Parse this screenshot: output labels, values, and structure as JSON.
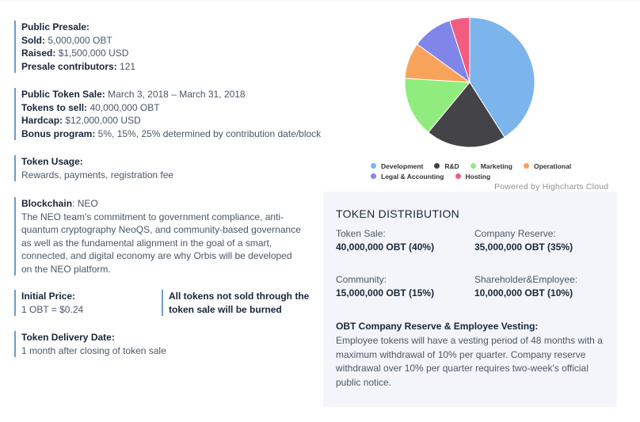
{
  "presale": {
    "title": "Public Presale:",
    "sold_label": "Sold:",
    "sold_value": " 5,000,000 OBT",
    "raised_label": "Raised:",
    "raised_value": " $1,500,000 USD",
    "contrib_label": "Presale contributors:",
    "contrib_value": " 121"
  },
  "token_sale": {
    "title": "Public Token Sale:",
    "dates": " March 3, 2018 – March 31, 2018",
    "tosell_label": "Tokens to sell:",
    "tosell_value": " 40,000,000 OBT",
    "hardcap_label": "Hardcap:",
    "hardcap_value": " $12,000,000 USD",
    "bonus_label": "Bonus program:",
    "bonus_value": " 5%, 15%, 25% determined by contribution date/block"
  },
  "usage": {
    "title": "Token Usage:",
    "text": "Rewards, payments, registration fee"
  },
  "blockchain": {
    "label": "Blockchain",
    "value": ": NEO",
    "text": "The NEO team's commitment to government compliance, anti-quantum cryptography NeoQS, and community-based governance as well as the fundamental alignment in the goal of a smart, connected, and digital economy are why Orbis will be developed on the NEO platform."
  },
  "price": {
    "title": "Initial Price:",
    "value": "1 OBT = $0.24"
  },
  "burn_note": "All tokens not sold through the token sale will be burned",
  "delivery": {
    "title": "Token Delivery Date:",
    "value": "1 month after closing of token sale"
  },
  "chart_data": {
    "type": "pie",
    "categories": [
      "Development",
      "R&D",
      "Marketing",
      "Operational",
      "Legal & Accounting",
      "Hosting"
    ],
    "values": [
      41,
      20,
      15,
      9,
      10,
      5
    ],
    "colors": [
      "#7cb5ec",
      "#434348",
      "#90ed7d",
      "#f7a35c",
      "#8085e9",
      "#f15c80"
    ],
    "legend_position": "bottom"
  },
  "credit": "Powered by Highcharts Cloud",
  "distribution": {
    "title": "TOKEN DISTRIBUTION",
    "items": [
      {
        "label": "Token Sale:",
        "value": "40,000,000 OBT (40%)"
      },
      {
        "label": "Company Reserve:",
        "value": "35,000,000 OBT (35%)"
      },
      {
        "label": "Community:",
        "value": "15,000,000 OBT (15%)"
      },
      {
        "label": "Shareholder&Employee:",
        "value": "10,000,000 OBT (10%)"
      }
    ],
    "vesting_title": "OBT Company Reserve & Employee Vesting:",
    "vesting_text": "Employee tokens will have a vesting period of 48 months with a maximum withdrawal of 10% per quarter. Company reserve withdrawal over 10% per quarter requires two-week's official public notice."
  }
}
